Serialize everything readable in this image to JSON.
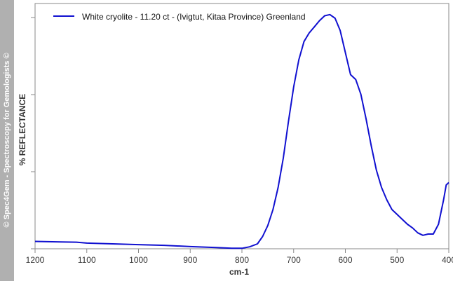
{
  "watermark": "© Spec4Gem - Spectroscopy for Gemologists ©",
  "colors": {
    "series": "#1010d0",
    "axis": "#8a8a8a",
    "band": "#b0b0b0"
  },
  "chart_data": {
    "type": "line",
    "xlabel": "cm-1",
    "ylabel": "% REFLECTANCE",
    "xlim": [
      1200,
      400
    ],
    "x_reversed": true,
    "ylim": [
      0,
      100
    ],
    "y_tick_labels": false,
    "grid": false,
    "legend_position": "top-left",
    "x_ticks": [
      1200,
      1100,
      1000,
      900,
      800,
      700,
      600,
      500,
      400
    ],
    "series": [
      {
        "name": "White cryolite - 11.20 ct - (Ivigtut, Kitaa Province)  Greenland",
        "points": [
          [
            1200,
            3.0
          ],
          [
            1150,
            2.8
          ],
          [
            1120,
            2.7
          ],
          [
            1100,
            2.3
          ],
          [
            1050,
            2.0
          ],
          [
            1000,
            1.7
          ],
          [
            950,
            1.4
          ],
          [
            900,
            0.9
          ],
          [
            850,
            0.5
          ],
          [
            820,
            0.2
          ],
          [
            800,
            0.2
          ],
          [
            785,
            0.8
          ],
          [
            770,
            2.0
          ],
          [
            760,
            5.0
          ],
          [
            750,
            9.5
          ],
          [
            740,
            16.0
          ],
          [
            730,
            25.0
          ],
          [
            720,
            37.0
          ],
          [
            710,
            52.0
          ],
          [
            700,
            66.0
          ],
          [
            690,
            77.0
          ],
          [
            680,
            84.5
          ],
          [
            670,
            88.0
          ],
          [
            660,
            90.5
          ],
          [
            650,
            93.0
          ],
          [
            640,
            95.0
          ],
          [
            630,
            95.5
          ],
          [
            620,
            94.0
          ],
          [
            610,
            89.0
          ],
          [
            600,
            80.0
          ],
          [
            590,
            71.0
          ],
          [
            580,
            69.0
          ],
          [
            570,
            63.0
          ],
          [
            560,
            53.0
          ],
          [
            550,
            42.0
          ],
          [
            540,
            32.0
          ],
          [
            530,
            25.0
          ],
          [
            520,
            20.0
          ],
          [
            510,
            16.0
          ],
          [
            500,
            14.0
          ],
          [
            490,
            12.0
          ],
          [
            480,
            10.0
          ],
          [
            470,
            8.5
          ],
          [
            460,
            6.5
          ],
          [
            450,
            5.5
          ],
          [
            440,
            6.0
          ],
          [
            430,
            6.0
          ],
          [
            420,
            10.0
          ],
          [
            410,
            20.0
          ],
          [
            405,
            26.0
          ],
          [
            400,
            27.0
          ]
        ]
      }
    ]
  }
}
